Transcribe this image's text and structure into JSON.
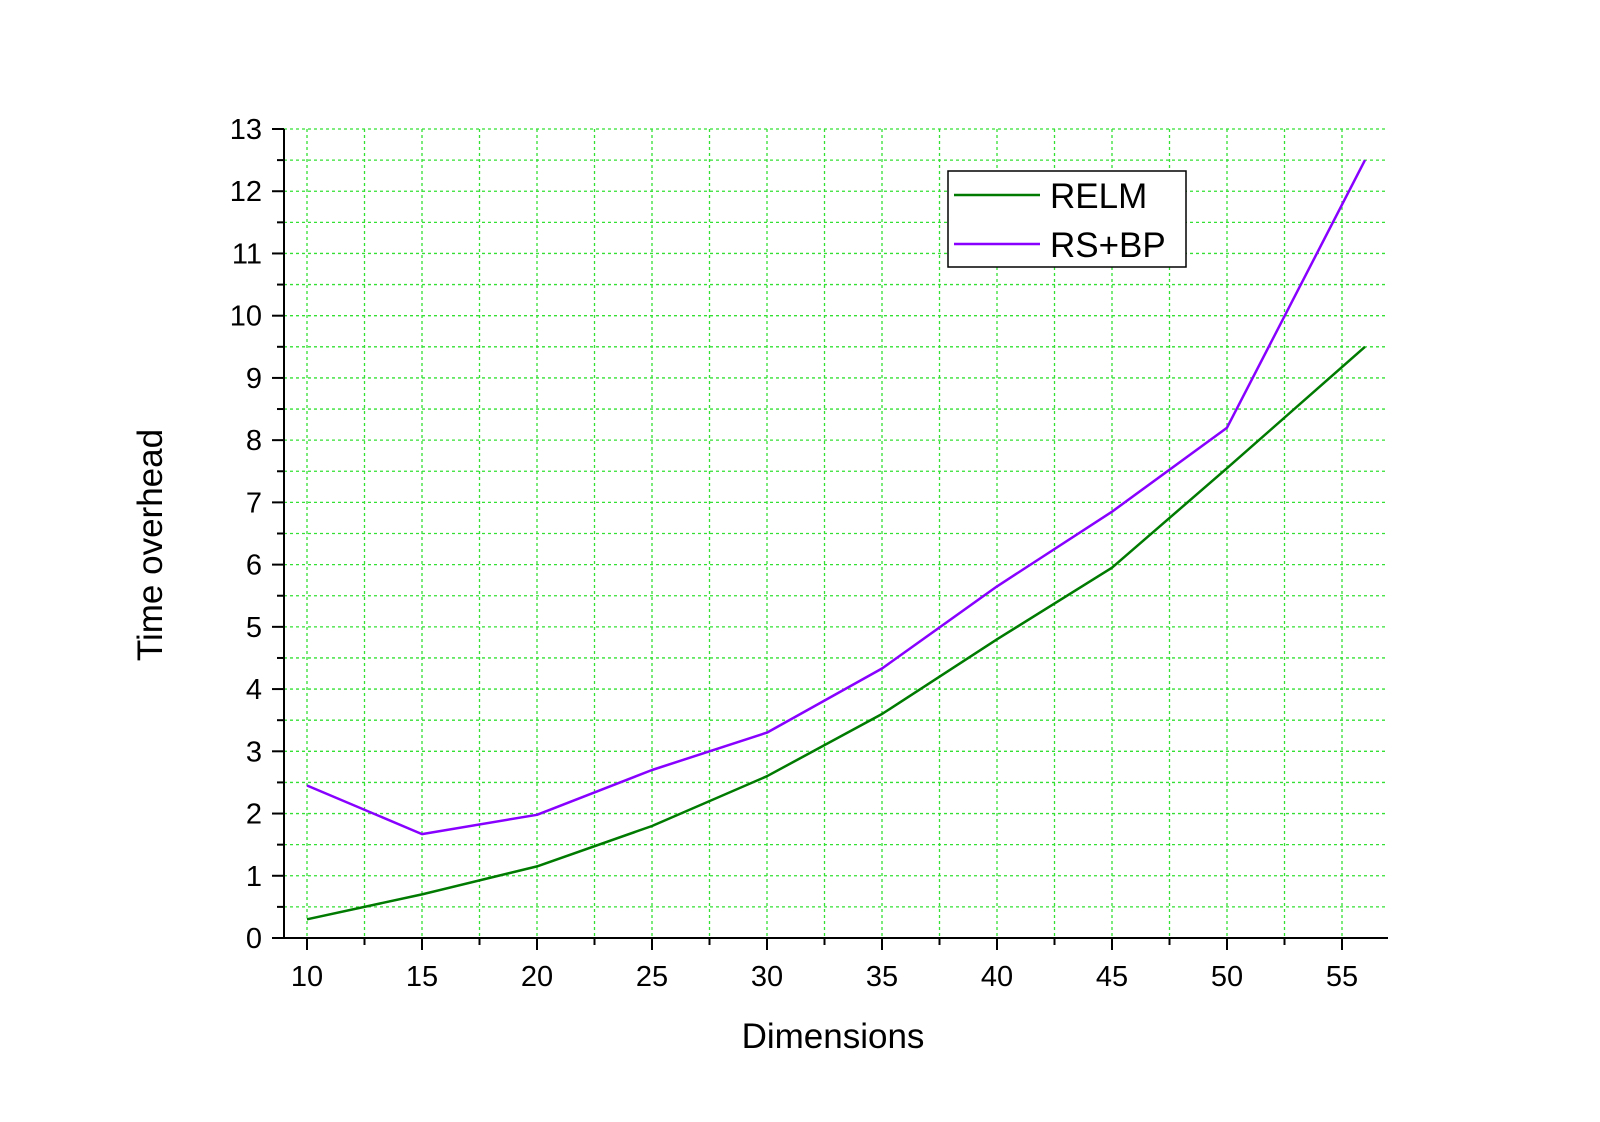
{
  "chart_data": {
    "type": "line",
    "title": "",
    "xlabel": "Dimensions",
    "ylabel": "Time overhead",
    "x": [
      10,
      15,
      20,
      25,
      30,
      35,
      40,
      45,
      50,
      56
    ],
    "series": [
      {
        "name": "RELM",
        "color": "#007a00",
        "values": [
          0.3,
          0.7,
          1.15,
          1.8,
          2.6,
          3.6,
          4.8,
          5.95,
          7.55,
          9.5
        ]
      },
      {
        "name": "RS+BP",
        "color": "#8800ff",
        "values": [
          2.45,
          1.67,
          1.98,
          2.7,
          3.3,
          4.33,
          5.65,
          6.85,
          8.2,
          12.5
        ]
      }
    ],
    "xlim": [
      9,
      57
    ],
    "ylim": [
      0,
      13
    ],
    "xticks": [
      "10",
      "15",
      "20",
      "25",
      "30",
      "35",
      "40",
      "45",
      "50",
      "55"
    ],
    "yticks": [
      "0",
      "1",
      "2",
      "3",
      "4",
      "5",
      "6",
      "7",
      "8",
      "9",
      "10",
      "11",
      "12",
      "13"
    ],
    "grid": true,
    "grid_color": "#33e033",
    "legend_position": "top-right"
  }
}
